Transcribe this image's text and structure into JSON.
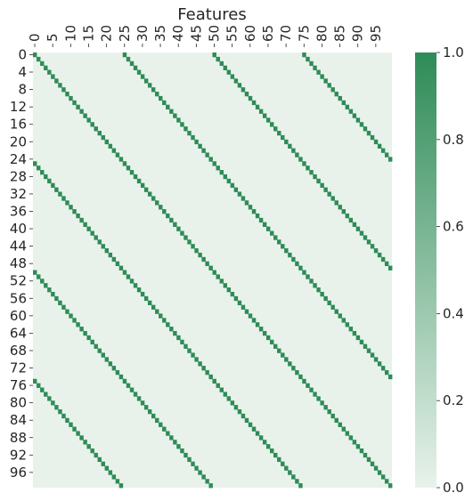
{
  "chart_data": {
    "type": "heatmap",
    "title": "Features",
    "xlabel": "",
    "ylabel": "",
    "rows": 100,
    "cols": 100,
    "value_range": [
      0.0,
      1.0
    ],
    "cell_rule": "value is 1.0 where (column - row) mod 25 == 0, otherwise 0.0",
    "diagonal_period": 25,
    "x_tick_labels": [
      "0",
      "5",
      "10",
      "15",
      "20",
      "25",
      "30",
      "35",
      "40",
      "45",
      "50",
      "55",
      "60",
      "65",
      "70",
      "75",
      "80",
      "85",
      "90",
      "95"
    ],
    "y_tick_labels": [
      "0",
      "4",
      "8",
      "12",
      "16",
      "20",
      "24",
      "28",
      "32",
      "36",
      "40",
      "44",
      "48",
      "52",
      "56",
      "60",
      "64",
      "68",
      "72",
      "76",
      "80",
      "84",
      "88",
      "92",
      "96"
    ],
    "colorbar": {
      "ticks": [
        "0.0",
        "0.2",
        "0.4",
        "0.6",
        "0.8",
        "1.0"
      ],
      "min_color": "#e8f2eb",
      "max_color": "#2e8b57"
    },
    "x_axis_position": "top"
  },
  "colors": {
    "low": "#e8f2eb",
    "high": "#2e8b57",
    "text": "#262626"
  }
}
